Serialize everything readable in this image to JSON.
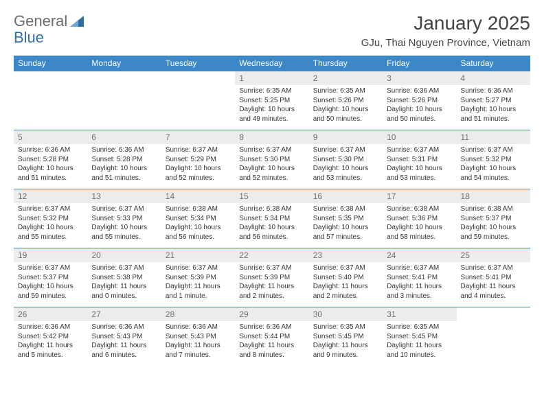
{
  "logo": {
    "text1": "General",
    "text2": "Blue",
    "brand_color": "#2f6fa8"
  },
  "header": {
    "month_title": "January 2025",
    "location": "GJu, Thai Nguyen Province, Vietnam"
  },
  "colors": {
    "header_bg": "#3b87c8",
    "header_text": "#ffffff",
    "daynum_bg": "#ececec",
    "daynum_text": "#707070",
    "cell_border": "#3b87c8",
    "body_text": "#333333"
  },
  "typography": {
    "month_fontsize": 28,
    "location_fontsize": 15,
    "weekday_fontsize": 12,
    "daynum_fontsize": 12,
    "cell_fontsize": 10
  },
  "weekdays": [
    "Sunday",
    "Monday",
    "Tuesday",
    "Wednesday",
    "Thursday",
    "Friday",
    "Saturday"
  ],
  "weeks": [
    [
      {
        "blank": true
      },
      {
        "blank": true
      },
      {
        "blank": true
      },
      {
        "day": "1",
        "sunrise": "Sunrise: 6:35 AM",
        "sunset": "Sunset: 5:25 PM",
        "daylight": "Daylight: 10 hours and 49 minutes."
      },
      {
        "day": "2",
        "sunrise": "Sunrise: 6:35 AM",
        "sunset": "Sunset: 5:26 PM",
        "daylight": "Daylight: 10 hours and 50 minutes."
      },
      {
        "day": "3",
        "sunrise": "Sunrise: 6:36 AM",
        "sunset": "Sunset: 5:26 PM",
        "daylight": "Daylight: 10 hours and 50 minutes."
      },
      {
        "day": "4",
        "sunrise": "Sunrise: 6:36 AM",
        "sunset": "Sunset: 5:27 PM",
        "daylight": "Daylight: 10 hours and 51 minutes."
      }
    ],
    [
      {
        "day": "5",
        "sunrise": "Sunrise: 6:36 AM",
        "sunset": "Sunset: 5:28 PM",
        "daylight": "Daylight: 10 hours and 51 minutes."
      },
      {
        "day": "6",
        "sunrise": "Sunrise: 6:36 AM",
        "sunset": "Sunset: 5:28 PM",
        "daylight": "Daylight: 10 hours and 51 minutes."
      },
      {
        "day": "7",
        "sunrise": "Sunrise: 6:37 AM",
        "sunset": "Sunset: 5:29 PM",
        "daylight": "Daylight: 10 hours and 52 minutes."
      },
      {
        "day": "8",
        "sunrise": "Sunrise: 6:37 AM",
        "sunset": "Sunset: 5:30 PM",
        "daylight": "Daylight: 10 hours and 52 minutes."
      },
      {
        "day": "9",
        "sunrise": "Sunrise: 6:37 AM",
        "sunset": "Sunset: 5:30 PM",
        "daylight": "Daylight: 10 hours and 53 minutes."
      },
      {
        "day": "10",
        "sunrise": "Sunrise: 6:37 AM",
        "sunset": "Sunset: 5:31 PM",
        "daylight": "Daylight: 10 hours and 53 minutes."
      },
      {
        "day": "11",
        "sunrise": "Sunrise: 6:37 AM",
        "sunset": "Sunset: 5:32 PM",
        "daylight": "Daylight: 10 hours and 54 minutes."
      }
    ],
    [
      {
        "day": "12",
        "sunrise": "Sunrise: 6:37 AM",
        "sunset": "Sunset: 5:32 PM",
        "daylight": "Daylight: 10 hours and 55 minutes."
      },
      {
        "day": "13",
        "sunrise": "Sunrise: 6:37 AM",
        "sunset": "Sunset: 5:33 PM",
        "daylight": "Daylight: 10 hours and 55 minutes."
      },
      {
        "day": "14",
        "sunrise": "Sunrise: 6:38 AM",
        "sunset": "Sunset: 5:34 PM",
        "daylight": "Daylight: 10 hours and 56 minutes."
      },
      {
        "day": "15",
        "sunrise": "Sunrise: 6:38 AM",
        "sunset": "Sunset: 5:34 PM",
        "daylight": "Daylight: 10 hours and 56 minutes."
      },
      {
        "day": "16",
        "sunrise": "Sunrise: 6:38 AM",
        "sunset": "Sunset: 5:35 PM",
        "daylight": "Daylight: 10 hours and 57 minutes."
      },
      {
        "day": "17",
        "sunrise": "Sunrise: 6:38 AM",
        "sunset": "Sunset: 5:36 PM",
        "daylight": "Daylight: 10 hours and 58 minutes."
      },
      {
        "day": "18",
        "sunrise": "Sunrise: 6:38 AM",
        "sunset": "Sunset: 5:37 PM",
        "daylight": "Daylight: 10 hours and 59 minutes."
      }
    ],
    [
      {
        "day": "19",
        "sunrise": "Sunrise: 6:37 AM",
        "sunset": "Sunset: 5:37 PM",
        "daylight": "Daylight: 10 hours and 59 minutes."
      },
      {
        "day": "20",
        "sunrise": "Sunrise: 6:37 AM",
        "sunset": "Sunset: 5:38 PM",
        "daylight": "Daylight: 11 hours and 0 minutes."
      },
      {
        "day": "21",
        "sunrise": "Sunrise: 6:37 AM",
        "sunset": "Sunset: 5:39 PM",
        "daylight": "Daylight: 11 hours and 1 minute."
      },
      {
        "day": "22",
        "sunrise": "Sunrise: 6:37 AM",
        "sunset": "Sunset: 5:39 PM",
        "daylight": "Daylight: 11 hours and 2 minutes."
      },
      {
        "day": "23",
        "sunrise": "Sunrise: 6:37 AM",
        "sunset": "Sunset: 5:40 PM",
        "daylight": "Daylight: 11 hours and 2 minutes."
      },
      {
        "day": "24",
        "sunrise": "Sunrise: 6:37 AM",
        "sunset": "Sunset: 5:41 PM",
        "daylight": "Daylight: 11 hours and 3 minutes."
      },
      {
        "day": "25",
        "sunrise": "Sunrise: 6:37 AM",
        "sunset": "Sunset: 5:41 PM",
        "daylight": "Daylight: 11 hours and 4 minutes."
      }
    ],
    [
      {
        "day": "26",
        "sunrise": "Sunrise: 6:36 AM",
        "sunset": "Sunset: 5:42 PM",
        "daylight": "Daylight: 11 hours and 5 minutes."
      },
      {
        "day": "27",
        "sunrise": "Sunrise: 6:36 AM",
        "sunset": "Sunset: 5:43 PM",
        "daylight": "Daylight: 11 hours and 6 minutes."
      },
      {
        "day": "28",
        "sunrise": "Sunrise: 6:36 AM",
        "sunset": "Sunset: 5:43 PM",
        "daylight": "Daylight: 11 hours and 7 minutes."
      },
      {
        "day": "29",
        "sunrise": "Sunrise: 6:36 AM",
        "sunset": "Sunset: 5:44 PM",
        "daylight": "Daylight: 11 hours and 8 minutes."
      },
      {
        "day": "30",
        "sunrise": "Sunrise: 6:35 AM",
        "sunset": "Sunset: 5:45 PM",
        "daylight": "Daylight: 11 hours and 9 minutes."
      },
      {
        "day": "31",
        "sunrise": "Sunrise: 6:35 AM",
        "sunset": "Sunset: 5:45 PM",
        "daylight": "Daylight: 11 hours and 10 minutes."
      },
      {
        "blank": true
      }
    ]
  ]
}
